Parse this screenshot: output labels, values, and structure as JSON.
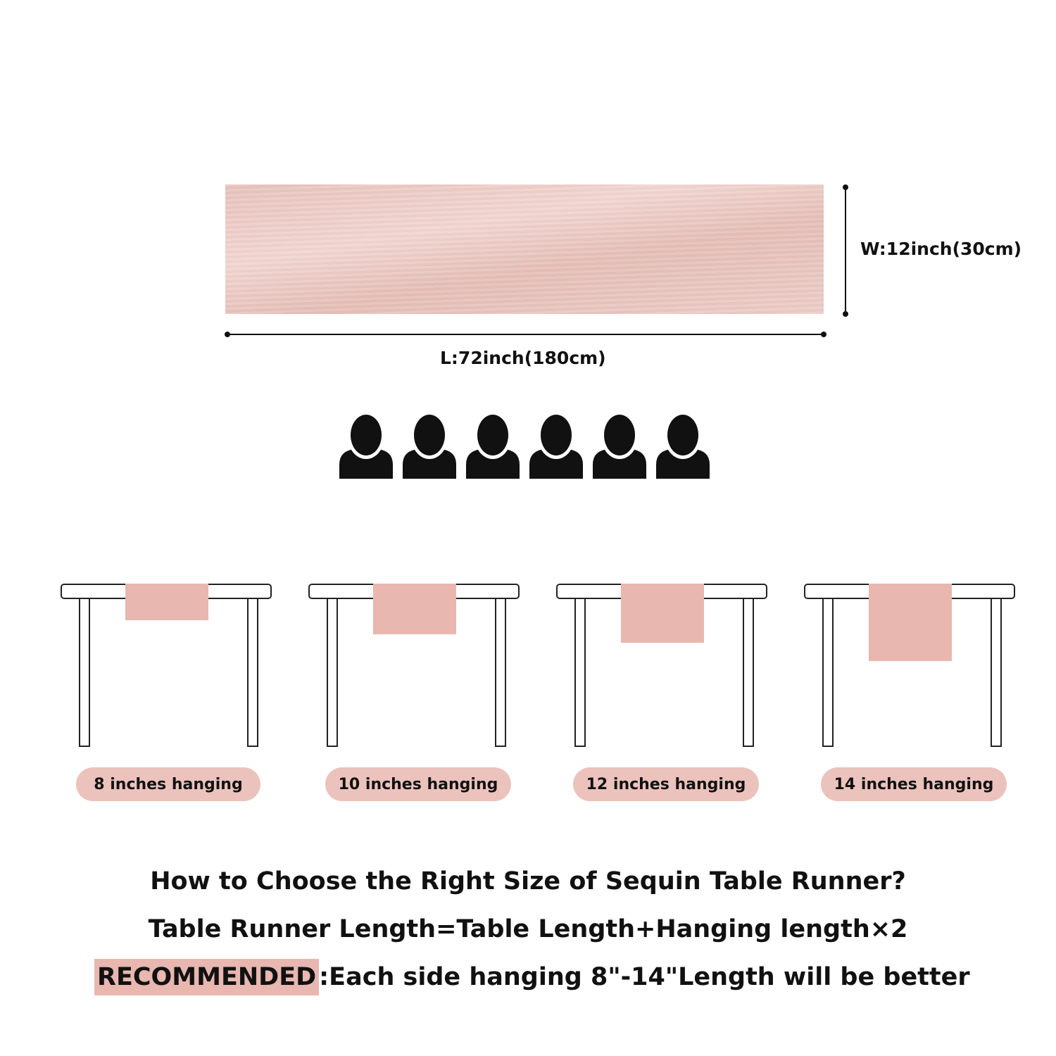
{
  "dimensions": {
    "width_label": "W:12inch(30cm)",
    "length_label": "L:72inch(180cm)"
  },
  "people_count": 6,
  "tables": [
    {
      "label": "8 inches hanging",
      "hang_inches": 8
    },
    {
      "label": "10 inches hanging",
      "hang_inches": 10
    },
    {
      "label": "12 inches hanging",
      "hang_inches": 12
    },
    {
      "label": "14 inches hanging",
      "hang_inches": 14
    }
  ],
  "text": {
    "question": "How to Choose the Right Size of Sequin Table Runner?",
    "formula": "Table Runner Length=Table Length+Hanging length×2",
    "recommended_label": "RECOMMENDED",
    "recommended_text": ":Each side hanging 8\"-14\"Length will be better"
  },
  "colors": {
    "runner": "#e9c3bd",
    "drape": "#e8b7b0",
    "label_pill": "#ecc2bc",
    "highlight": "#e8b7b0",
    "ink": "#111111"
  }
}
